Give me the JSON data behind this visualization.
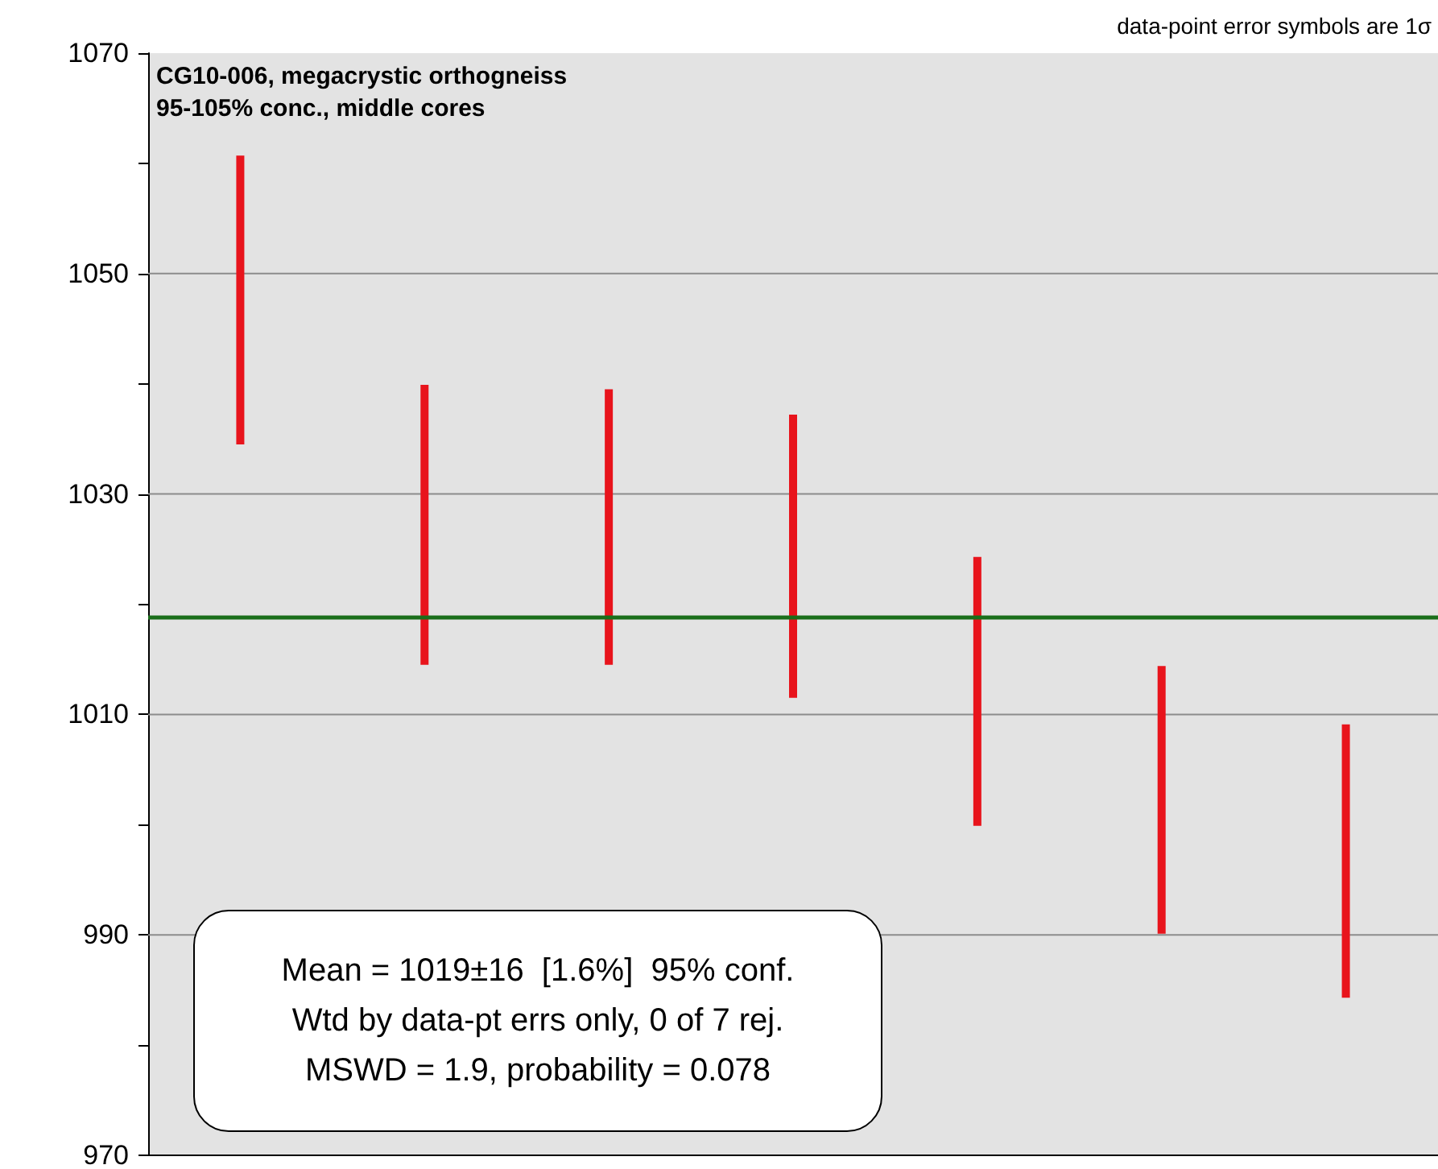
{
  "chart_data": {
    "type": "bar",
    "title": "CG10-006, megacrystic orthogneiss",
    "subtitle": "95-105% conc., middle cores",
    "categories": [
      null,
      null,
      null,
      null,
      null,
      null,
      null
    ],
    "base": [
      1034.5,
      1014.5,
      1014.5,
      1011.5,
      999.9,
      990.1,
      984.3
    ],
    "values": [
      26.2,
      25.4,
      25.0,
      25.7,
      24.4,
      24.3,
      24.8
    ],
    "color": "#e8141c",
    "ylim": [
      970,
      1070
    ],
    "yticks": [
      970,
      {
        "value": 980,
        "label": null
      },
      990,
      {
        "value": 1000,
        "label": null
      },
      1010,
      {
        "value": 1020,
        "label": null
      },
      1030,
      {
        "value": 1040,
        "label": null
      },
      1050,
      {
        "value": 1060,
        "label": null
      },
      1070
    ],
    "grid": "y",
    "ref_lines": [
      {
        "axis": "y",
        "value": 1018.8,
        "label": null,
        "color": "#1a6e1a"
      }
    ],
    "annotations": [
      "data-point error symbols are 1σ",
      "Mean = 1019±16  [1.6%]  95% conf.",
      "Wtd by data-pt errs only, 0 of 7 rej.",
      "MSWD = 1.9, probability = 0.078"
    ]
  }
}
